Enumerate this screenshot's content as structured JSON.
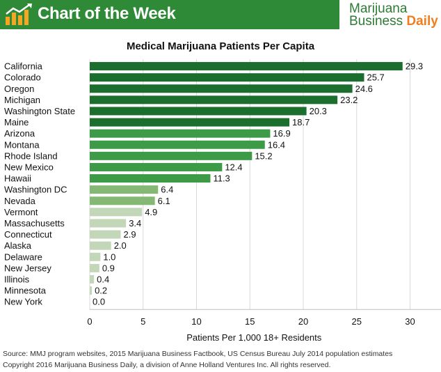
{
  "banner": {
    "title": "Chart of the Week",
    "brand_line1": "Marijuana",
    "brand_line2_a": "Business ",
    "brand_line2_b": "Daily",
    "logo_icon": "bar-chart-arrow-icon",
    "colors": {
      "banner": "#2e8a37",
      "brand_text": "#2e7a35",
      "brand_accent": "#f07e1f"
    }
  },
  "footer": {
    "source": "Source: MMJ program websites, 2015 Marijuana Business Factbook, US Census Bureau July 2014 population estimates",
    "copyright": "Copyright 2016 Marijuana Business Daily, a division of Anne Holland Ventures Inc. All rights reserved."
  },
  "chart_data": {
    "type": "bar",
    "orientation": "horizontal",
    "title": "Medical Marijuana Patients Per Capita",
    "xlabel": "Patients Per 1,000 18+ Residents",
    "ylabel": "",
    "xlim": [
      0,
      33
    ],
    "xticks": [
      0,
      5,
      10,
      15,
      20,
      25,
      30
    ],
    "grid": "vertical",
    "categories": [
      "California",
      "Colorado",
      "Oregon",
      "Michigan",
      "Washington State",
      "Maine",
      "Arizona",
      "Montana",
      "Rhode Island",
      "New Mexico",
      "Hawaii",
      "Washington DC",
      "Nevada",
      "Vermont",
      "Massachusetts",
      "Connecticut",
      "Alaska",
      "Delaware",
      "New Jersey",
      "Illinois",
      "Minnesota",
      "New York"
    ],
    "values": [
      29.3,
      25.7,
      24.6,
      23.2,
      20.3,
      18.7,
      16.9,
      16.4,
      15.2,
      12.4,
      11.3,
      6.4,
      6.1,
      4.9,
      3.4,
      2.9,
      2.0,
      1.0,
      0.9,
      0.4,
      0.2,
      0.0
    ],
    "value_labels": [
      "29.3",
      "25.7",
      "24.6",
      "23.2",
      "20.3",
      "18.7",
      "16.9",
      "16.4",
      "15.2",
      "12.4",
      "11.3",
      "6.4",
      "6.1",
      "4.9",
      "3.4",
      "2.9",
      "2.0",
      "1.0",
      "0.9",
      "0.4",
      "0.2",
      "0.0"
    ],
    "bar_colors": [
      "#1b6e2e",
      "#1b6e2e",
      "#1b6e2e",
      "#1b6e2e",
      "#1b6e2e",
      "#1b6e2e",
      "#3d9a46",
      "#3d9a46",
      "#3d9a46",
      "#3d9a46",
      "#3d9a46",
      "#85b874",
      "#85b874",
      "#c2d6b8",
      "#c2d6b8",
      "#c2d6b8",
      "#c2d6b8",
      "#c2d6b8",
      "#c2d6b8",
      "#c2d6b8",
      "#c2d6b8",
      "#c2d6b8"
    ]
  }
}
